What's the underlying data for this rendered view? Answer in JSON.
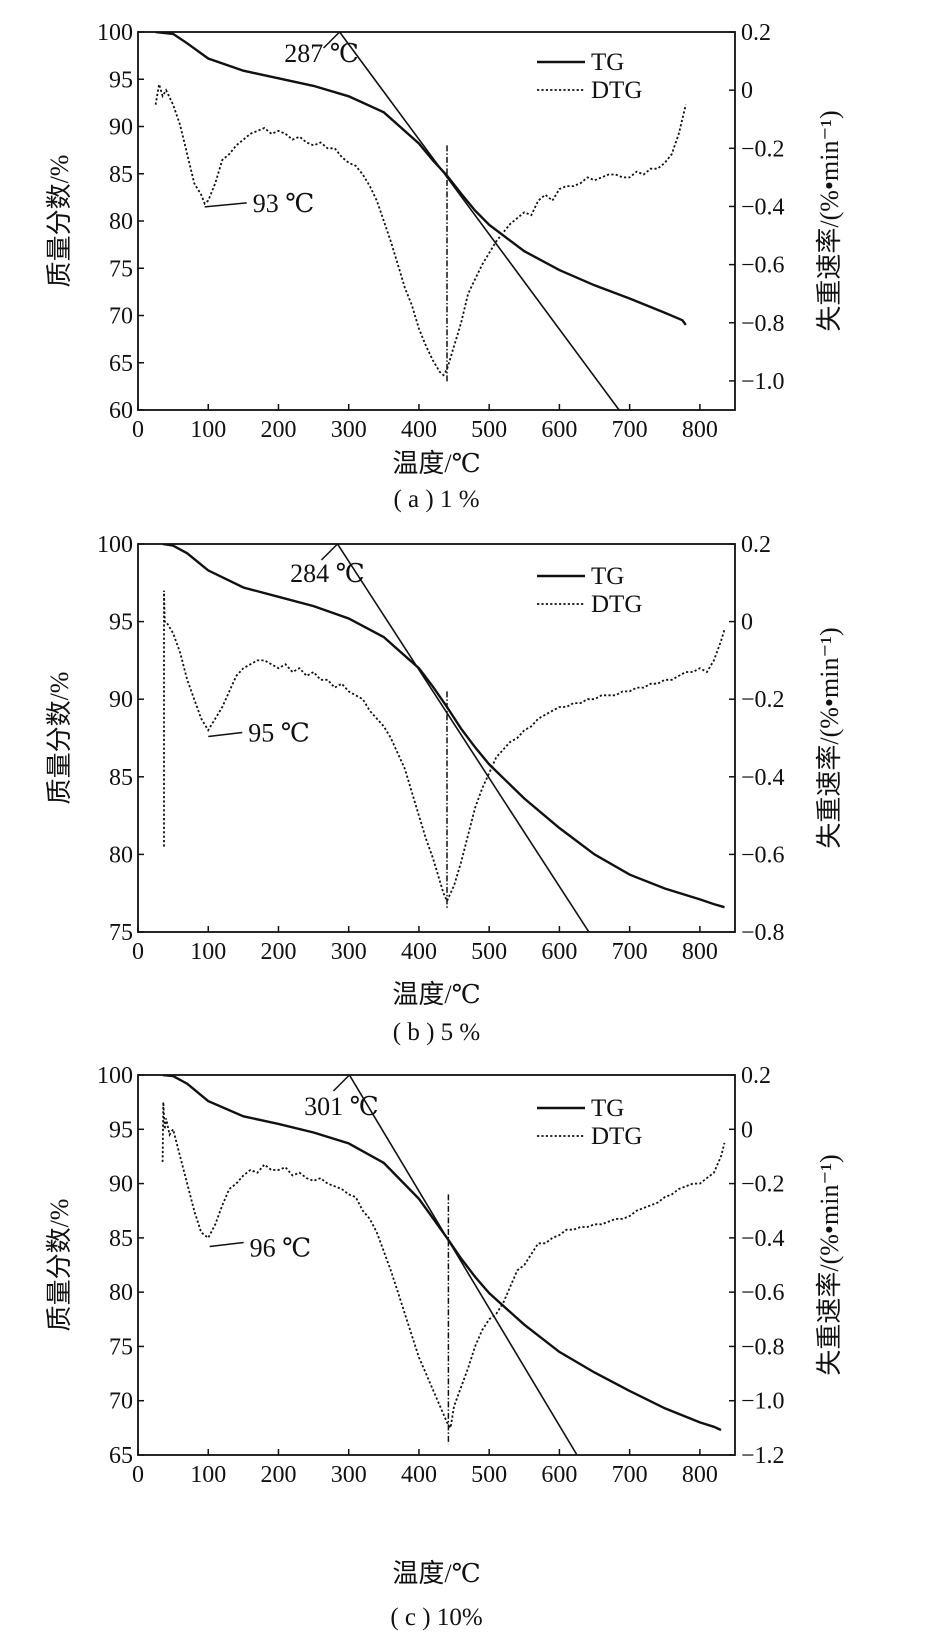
{
  "chart_data": [
    {
      "type": "line",
      "caption": "( a ) 1 %",
      "xlabel": "温度/℃",
      "ylabel": "质量分数/%",
      "y2label": "失重速率/(%•min⁻¹)",
      "xlim": [
        0,
        850
      ],
      "ylim": [
        60,
        100
      ],
      "y2lim": [
        -1.1,
        0.2
      ],
      "xticks": [
        0,
        100,
        200,
        300,
        400,
        500,
        600,
        700,
        800
      ],
      "yticks": [
        60,
        65,
        70,
        75,
        80,
        85,
        90,
        95,
        100
      ],
      "y2ticks": [
        -1.0,
        -0.8,
        -0.6,
        -0.4,
        -0.2,
        0,
        0.2
      ],
      "y2ticklabels": [
        "−1.0",
        "−0.8",
        "−0.6",
        "−0.4",
        "−0.2",
        "0",
        "0.2"
      ],
      "legend_position": "top-right",
      "series": [
        {
          "name": "TG",
          "style": "solid",
          "axis": "left",
          "x": [
            25,
            50,
            70,
            100,
            150,
            200,
            250,
            300,
            350,
            400,
            420,
            440,
            460,
            480,
            500,
            550,
            600,
            650,
            700,
            750,
            775,
            780
          ],
          "y": [
            100,
            99.8,
            98.8,
            97.2,
            95.9,
            95.1,
            94.3,
            93.2,
            91.5,
            88.2,
            86.4,
            84.8,
            82.9,
            81.1,
            79.6,
            76.8,
            74.8,
            73.2,
            71.8,
            70.3,
            69.5,
            69.0
          ]
        },
        {
          "name": "DTG",
          "style": "dotted",
          "axis": "right",
          "x": [
            25,
            30,
            35,
            40,
            50,
            60,
            70,
            80,
            90,
            95,
            100,
            110,
            120,
            130,
            140,
            150,
            160,
            170,
            180,
            190,
            200,
            210,
            220,
            230,
            240,
            250,
            260,
            270,
            280,
            290,
            300,
            310,
            320,
            330,
            340,
            350,
            360,
            370,
            380,
            390,
            400,
            410,
            420,
            430,
            435,
            440,
            450,
            460,
            470,
            480,
            490,
            500,
            510,
            520,
            530,
            540,
            550,
            560,
            570,
            580,
            590,
            600,
            610,
            620,
            630,
            640,
            650,
            660,
            670,
            680,
            690,
            700,
            710,
            720,
            730,
            740,
            750,
            760,
            770,
            780
          ],
          "y": [
            -0.05,
            0.02,
            -0.02,
            0.0,
            -0.05,
            -0.12,
            -0.22,
            -0.32,
            -0.36,
            -0.39,
            -0.38,
            -0.32,
            -0.24,
            -0.22,
            -0.19,
            -0.17,
            -0.15,
            -0.14,
            -0.13,
            -0.15,
            -0.14,
            -0.15,
            -0.17,
            -0.16,
            -0.18,
            -0.19,
            -0.18,
            -0.2,
            -0.2,
            -0.23,
            -0.25,
            -0.26,
            -0.29,
            -0.33,
            -0.38,
            -0.45,
            -0.52,
            -0.6,
            -0.68,
            -0.74,
            -0.82,
            -0.88,
            -0.93,
            -0.97,
            -0.98,
            -0.96,
            -0.88,
            -0.8,
            -0.7,
            -0.65,
            -0.6,
            -0.56,
            -0.52,
            -0.49,
            -0.46,
            -0.44,
            -0.42,
            -0.43,
            -0.38,
            -0.36,
            -0.38,
            -0.34,
            -0.33,
            -0.33,
            -0.32,
            -0.3,
            -0.31,
            -0.3,
            -0.29,
            -0.29,
            -0.3,
            -0.3,
            -0.28,
            -0.29,
            -0.27,
            -0.27,
            -0.25,
            -0.22,
            -0.15,
            -0.05
          ]
        },
        {
          "name": "tangent",
          "style": "solid",
          "axis": "left",
          "x": [
            287,
            685
          ],
          "y": [
            100,
            60
          ]
        },
        {
          "name": "peak-marker",
          "style": "dashdot",
          "axis": "left",
          "x": [
            440,
            440
          ],
          "y": [
            88,
            63
          ]
        }
      ],
      "annotations": [
        {
          "text": "287 ℃",
          "x": 287,
          "y": 100
        },
        {
          "text": "93 ℃",
          "x": 95,
          "y": 81.5
        }
      ]
    },
    {
      "type": "line",
      "caption": "( b ) 5 %",
      "xlabel": "温度/℃",
      "ylabel": "质量分数/%",
      "y2label": "失重速率/(%•min⁻¹)",
      "xlim": [
        0,
        850
      ],
      "ylim": [
        75,
        100
      ],
      "y2lim": [
        -0.8,
        0.2
      ],
      "xticks": [
        0,
        100,
        200,
        300,
        400,
        500,
        600,
        700,
        800
      ],
      "yticks": [
        75,
        80,
        85,
        90,
        95,
        100
      ],
      "y2ticks": [
        -0.8,
        -0.6,
        -0.4,
        -0.2,
        0,
        0.2
      ],
      "y2ticklabels": [
        "−0.8",
        "−0.6",
        "−0.4",
        "−0.2",
        "0",
        "0.2"
      ],
      "legend_position": "top-right",
      "series": [
        {
          "name": "TG",
          "style": "solid",
          "axis": "left",
          "x": [
            35,
            50,
            70,
            100,
            150,
            200,
            250,
            300,
            350,
            400,
            420,
            440,
            460,
            480,
            500,
            550,
            600,
            650,
            700,
            750,
            800,
            820,
            835
          ],
          "y": [
            100,
            99.9,
            99.4,
            98.3,
            97.2,
            96.6,
            96.0,
            95.2,
            94.0,
            92.0,
            90.8,
            89.5,
            88.1,
            86.9,
            85.8,
            83.6,
            81.7,
            80.0,
            78.7,
            77.8,
            77.1,
            76.8,
            76.6
          ]
        },
        {
          "name": "DTG",
          "style": "dotted",
          "axis": "right",
          "x": [
            37,
            37,
            38,
            40,
            50,
            60,
            70,
            80,
            90,
            100,
            110,
            120,
            130,
            140,
            150,
            160,
            170,
            180,
            190,
            200,
            210,
            220,
            230,
            240,
            250,
            260,
            270,
            280,
            290,
            300,
            310,
            320,
            330,
            340,
            350,
            360,
            370,
            380,
            390,
            400,
            410,
            420,
            430,
            435,
            440,
            450,
            460,
            470,
            480,
            490,
            500,
            510,
            520,
            530,
            540,
            550,
            560,
            570,
            580,
            590,
            600,
            610,
            620,
            630,
            640,
            650,
            660,
            670,
            680,
            690,
            700,
            710,
            720,
            730,
            740,
            750,
            760,
            770,
            780,
            790,
            800,
            810,
            820,
            830,
            835
          ],
          "y": [
            -0.58,
            0.08,
            0.0,
            0.0,
            -0.03,
            -0.08,
            -0.15,
            -0.2,
            -0.25,
            -0.28,
            -0.25,
            -0.22,
            -0.18,
            -0.14,
            -0.12,
            -0.11,
            -0.1,
            -0.1,
            -0.11,
            -0.12,
            -0.11,
            -0.13,
            -0.12,
            -0.14,
            -0.13,
            -0.15,
            -0.15,
            -0.17,
            -0.16,
            -0.18,
            -0.19,
            -0.2,
            -0.23,
            -0.25,
            -0.27,
            -0.3,
            -0.34,
            -0.38,
            -0.44,
            -0.5,
            -0.56,
            -0.61,
            -0.67,
            -0.7,
            -0.72,
            -0.68,
            -0.62,
            -0.55,
            -0.48,
            -0.43,
            -0.39,
            -0.35,
            -0.33,
            -0.31,
            -0.3,
            -0.28,
            -0.27,
            -0.25,
            -0.24,
            -0.23,
            -0.22,
            -0.22,
            -0.21,
            -0.21,
            -0.2,
            -0.2,
            -0.19,
            -0.19,
            -0.19,
            -0.18,
            -0.18,
            -0.17,
            -0.17,
            -0.16,
            -0.16,
            -0.15,
            -0.15,
            -0.14,
            -0.13,
            -0.13,
            -0.12,
            -0.13,
            -0.1,
            -0.05,
            -0.02
          ]
        },
        {
          "name": "tangent",
          "style": "solid",
          "axis": "left",
          "x": [
            284,
            642
          ],
          "y": [
            100,
            75
          ]
        },
        {
          "name": "peak-marker",
          "style": "dashdot",
          "axis": "left",
          "x": [
            440,
            440
          ],
          "y": [
            90.5,
            76.5
          ]
        }
      ],
      "annotations": [
        {
          "text": "284 ℃",
          "x": 284,
          "y": 100
        },
        {
          "text": "95 ℃",
          "x": 100,
          "y": 87.6
        }
      ]
    },
    {
      "type": "line",
      "caption": "( c ) 10%",
      "xlabel": "温度/℃",
      "ylabel": "质量分数/%",
      "y2label": "失重速率/(%•min⁻¹)",
      "xlim": [
        0,
        850
      ],
      "ylim": [
        65,
        100
      ],
      "y2lim": [
        -1.2,
        0.2
      ],
      "xticks": [
        0,
        100,
        200,
        300,
        400,
        500,
        600,
        700,
        800
      ],
      "yticks": [
        65,
        70,
        75,
        80,
        85,
        90,
        95,
        100
      ],
      "y2ticks": [
        -1.2,
        -1.0,
        -0.8,
        -0.6,
        -0.4,
        -0.2,
        0,
        0.2
      ],
      "y2ticklabels": [
        "−1.2",
        "−1.0",
        "−0.8",
        "−0.6",
        "−0.4",
        "−0.2",
        "0",
        "0.2"
      ],
      "legend_position": "top-right",
      "series": [
        {
          "name": "TG",
          "style": "solid",
          "axis": "left",
          "x": [
            35,
            50,
            70,
            100,
            150,
            200,
            250,
            300,
            350,
            400,
            420,
            440,
            460,
            480,
            500,
            550,
            600,
            650,
            700,
            750,
            800,
            820,
            830
          ],
          "y": [
            100,
            99.9,
            99.2,
            97.6,
            96.2,
            95.5,
            94.7,
            93.7,
            91.9,
            88.6,
            86.8,
            85.0,
            83.1,
            81.4,
            79.9,
            77.0,
            74.5,
            72.6,
            70.9,
            69.3,
            68.0,
            67.6,
            67.3
          ]
        },
        {
          "name": "DTG",
          "style": "dotted",
          "axis": "right",
          "x": [
            35,
            36,
            38,
            40,
            45,
            50,
            60,
            70,
            80,
            90,
            100,
            110,
            120,
            130,
            140,
            150,
            160,
            170,
            180,
            190,
            200,
            210,
            220,
            230,
            240,
            250,
            260,
            270,
            280,
            290,
            300,
            310,
            320,
            330,
            340,
            350,
            360,
            370,
            380,
            390,
            400,
            410,
            420,
            430,
            440,
            445,
            450,
            460,
            470,
            480,
            490,
            500,
            510,
            520,
            530,
            540,
            550,
            560,
            570,
            580,
            590,
            600,
            610,
            620,
            630,
            640,
            650,
            660,
            670,
            680,
            690,
            700,
            710,
            720,
            730,
            740,
            750,
            760,
            770,
            780,
            790,
            800,
            810,
            820,
            830,
            835
          ],
          "y": [
            -0.12,
            0.1,
            0.0,
            0.04,
            -0.02,
            0.0,
            -0.1,
            -0.2,
            -0.3,
            -0.38,
            -0.4,
            -0.35,
            -0.28,
            -0.22,
            -0.2,
            -0.17,
            -0.15,
            -0.16,
            -0.13,
            -0.15,
            -0.15,
            -0.14,
            -0.17,
            -0.16,
            -0.18,
            -0.19,
            -0.18,
            -0.2,
            -0.21,
            -0.22,
            -0.24,
            -0.25,
            -0.3,
            -0.33,
            -0.38,
            -0.45,
            -0.52,
            -0.6,
            -0.68,
            -0.76,
            -0.84,
            -0.9,
            -0.96,
            -1.02,
            -1.08,
            -1.1,
            -1.02,
            -0.95,
            -0.88,
            -0.8,
            -0.74,
            -0.7,
            -0.68,
            -0.64,
            -0.58,
            -0.52,
            -0.5,
            -0.46,
            -0.42,
            -0.42,
            -0.4,
            -0.39,
            -0.37,
            -0.37,
            -0.36,
            -0.36,
            -0.35,
            -0.35,
            -0.34,
            -0.33,
            -0.33,
            -0.32,
            -0.3,
            -0.29,
            -0.28,
            -0.27,
            -0.25,
            -0.24,
            -0.22,
            -0.21,
            -0.2,
            -0.2,
            -0.18,
            -0.16,
            -0.1,
            -0.05
          ]
        },
        {
          "name": "tangent",
          "style": "solid",
          "axis": "left",
          "x": [
            301,
            625
          ],
          "y": [
            100,
            65
          ]
        },
        {
          "name": "peak-marker",
          "style": "dashdot",
          "axis": "left",
          "x": [
            442,
            442
          ],
          "y": [
            89,
            66
          ]
        }
      ],
      "annotations": [
        {
          "text": "301 ℃",
          "x": 301,
          "y": 100
        },
        {
          "text": "96 ℃",
          "x": 102,
          "y": 84.2
        }
      ]
    }
  ]
}
